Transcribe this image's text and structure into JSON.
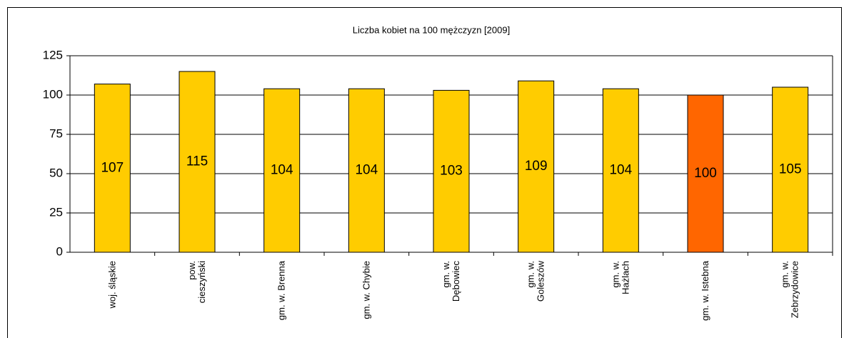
{
  "chart_data": {
    "type": "bar",
    "title": "Liczba kobiet na 100 mężczyzn [2009]",
    "categories": [
      "woj. śląskie",
      "pow.\ncieszyński",
      "gm. w. Brenna",
      "gm. w. Chybie",
      "gm. w.\nDębowiec",
      "gm. w.\nGoleszów",
      "gm. w.\nHażlach",
      "gm. w. Istebna",
      "gm. w.\nZebrzydowice"
    ],
    "values": [
      107,
      115,
      104,
      104,
      103,
      109,
      104,
      100,
      105
    ],
    "colors": [
      "#ffcc00",
      "#ffcc00",
      "#ffcc00",
      "#ffcc00",
      "#ffcc00",
      "#ffcc00",
      "#ffcc00",
      "#ff6600",
      "#ffcc00"
    ],
    "ylim": [
      0,
      125
    ],
    "yticks": [
      0,
      25,
      50,
      75,
      100,
      125
    ],
    "grid": true
  }
}
